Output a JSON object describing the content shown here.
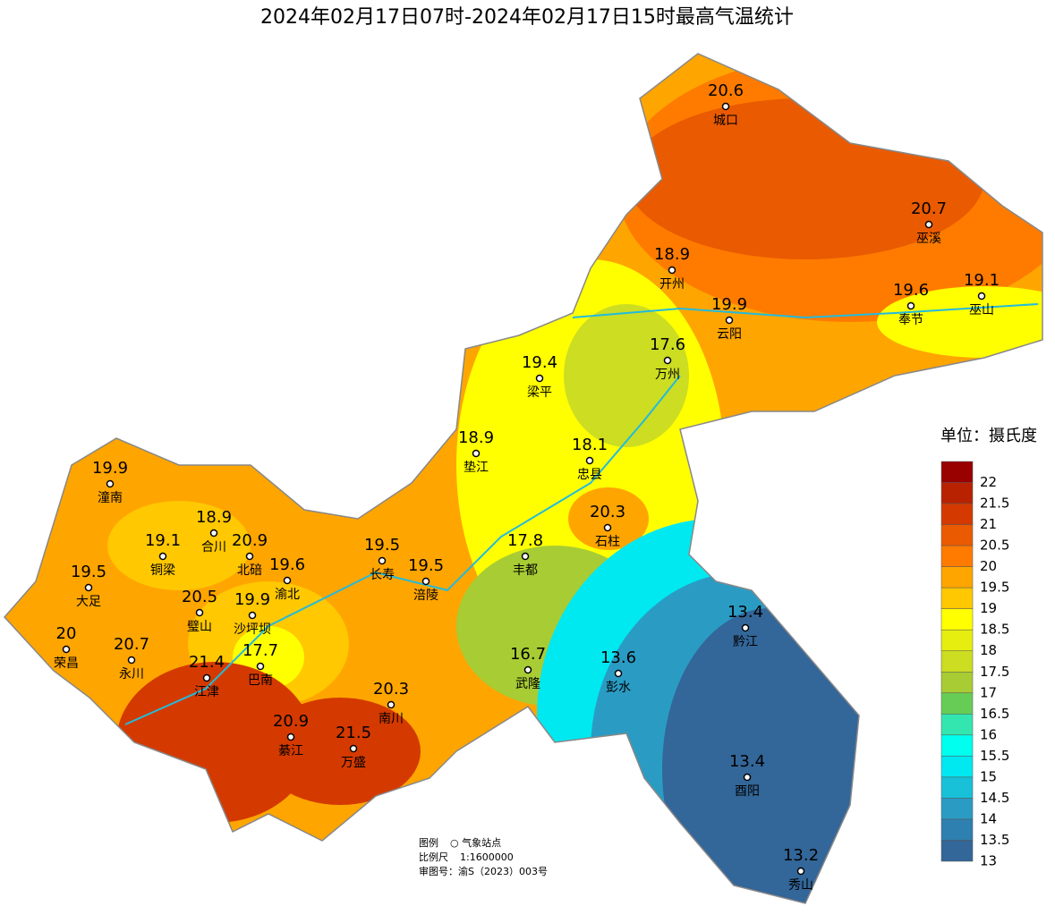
{
  "title": "2024年02月17日07时-2024年02月17日15时最高气温统计",
  "legend": {
    "title": "单位：摄氏度",
    "levels": [
      {
        "value": 22,
        "color": "#990000"
      },
      {
        "value": 21.5,
        "color": "#b82200"
      },
      {
        "value": 21,
        "color": "#d43a00"
      },
      {
        "value": 20.5,
        "color": "#ea5a00"
      },
      {
        "value": 20,
        "color": "#ff7b00"
      },
      {
        "value": 19.5,
        "color": "#ffa500"
      },
      {
        "value": 19,
        "color": "#ffc800"
      },
      {
        "value": 18.5,
        "color": "#ffff00"
      },
      {
        "value": 18,
        "color": "#e6ee10"
      },
      {
        "value": 17.5,
        "color": "#ccdd22"
      },
      {
        "value": 17,
        "color": "#a8cc33"
      },
      {
        "value": 16.5,
        "color": "#66cc55"
      },
      {
        "value": 16,
        "color": "#33e6b0"
      },
      {
        "value": 15.5,
        "color": "#00ffee"
      },
      {
        "value": 15,
        "color": "#00e8f0"
      },
      {
        "value": 14.5,
        "color": "#18c0d8"
      },
      {
        "value": 14,
        "color": "#2a9cc4"
      },
      {
        "value": 13.5,
        "color": "#2d80b0"
      },
      {
        "value": 13,
        "color": "#336699"
      }
    ]
  },
  "stations": [
    {
      "name": "城口",
      "value": 20.6
    },
    {
      "name": "巫溪",
      "value": 20.7
    },
    {
      "name": "开州",
      "value": 18.9
    },
    {
      "name": "巫山",
      "value": 19.1
    },
    {
      "name": "奉节",
      "value": 19.6
    },
    {
      "name": "云阳",
      "value": 19.9
    },
    {
      "name": "万州",
      "value": 17.6
    },
    {
      "name": "梁平",
      "value": 19.4
    },
    {
      "name": "垫江",
      "value": 18.9
    },
    {
      "name": "忠县",
      "value": 18.1
    },
    {
      "name": "石柱",
      "value": 20.3
    },
    {
      "name": "潼南",
      "value": 19.9
    },
    {
      "name": "合川",
      "value": 18.9
    },
    {
      "name": "铜梁",
      "value": 19.1
    },
    {
      "name": "北碚",
      "value": 20.9
    },
    {
      "name": "渝北",
      "value": 19.6
    },
    {
      "name": "长寿",
      "value": 19.5
    },
    {
      "name": "涪陵",
      "value": 19.5
    },
    {
      "name": "丰都",
      "value": 17.8
    },
    {
      "name": "大足",
      "value": 19.5
    },
    {
      "name": "璧山",
      "value": 20.5
    },
    {
      "name": "沙坪坝",
      "value": 19.9
    },
    {
      "name": "荣昌",
      "value": 20
    },
    {
      "name": "永川",
      "value": 20.7
    },
    {
      "name": "巴南",
      "value": 17.7
    },
    {
      "name": "江津",
      "value": 21.4
    },
    {
      "name": "武隆",
      "value": 16.7
    },
    {
      "name": "彭水",
      "value": 13.6
    },
    {
      "name": "黔江",
      "value": 13.4
    },
    {
      "name": "南川",
      "value": 20.3
    },
    {
      "name": "綦江",
      "value": 20.9
    },
    {
      "name": "万盛",
      "value": 21.5
    },
    {
      "name": "酉阳",
      "value": 13.4
    },
    {
      "name": "秀山",
      "value": 13.2
    }
  ],
  "footer": {
    "legend_label": "图例",
    "legend_item": "○ 气象站点",
    "scale_label": "比例尺",
    "scale": "1:1600000",
    "approval": "审图号：渝S（2023）003号"
  }
}
